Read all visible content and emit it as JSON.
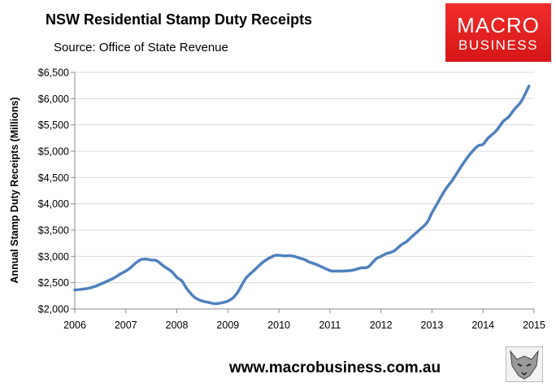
{
  "header": {
    "title": "NSW Residential Stamp Duty Receipts",
    "source": "Source: Office of State Revenue"
  },
  "logo": {
    "line1": "MACRO",
    "line2": "BUSINESS"
  },
  "footer": {
    "url": "www.macrobusiness.com.au"
  },
  "chart_data": {
    "type": "line",
    "title": "NSW Residential Stamp Duty Receipts",
    "subtitle": "Source: Office of State Revenue",
    "xlabel": "",
    "ylabel": "Annual Stamp Duty Receipts (Millions)",
    "xlim": [
      2006,
      2015
    ],
    "ylim": [
      2000,
      6500
    ],
    "x_ticks": [
      "2006",
      "2007",
      "2008",
      "2009",
      "2010",
      "2011",
      "2012",
      "2013",
      "2014",
      "2015"
    ],
    "y_ticks": [
      "$2,000",
      "$2,500",
      "$3,000",
      "$3,500",
      "$4,000",
      "$4,500",
      "$5,000",
      "$5,500",
      "$6,000",
      "$6,500"
    ],
    "grid": "horizontal",
    "line_color": "#4f81bd",
    "series": [
      {
        "x": [
          2006.0,
          2006.25,
          2006.4,
          2006.5,
          2006.75,
          2006.9,
          2007.0,
          2007.1,
          2007.2,
          2007.3,
          2007.4,
          2007.5,
          2007.6,
          2007.75,
          2007.9,
          2008.0,
          2008.1,
          2008.2,
          2008.35,
          2008.5,
          2008.6,
          2008.75,
          2008.9,
          2009.0,
          2009.1,
          2009.2,
          2009.35,
          2009.5,
          2009.7,
          2009.9,
          2010.0,
          2010.1,
          2010.25,
          2010.4,
          2010.5,
          2010.6,
          2010.75,
          2011.0,
          2011.1,
          2011.25,
          2011.4,
          2011.5,
          2011.6,
          2011.75,
          2011.9,
          2012.0,
          2012.1,
          2012.25,
          2012.4,
          2012.5,
          2012.6,
          2012.75,
          2012.9,
          2013.0,
          2013.1,
          2013.25,
          2013.4,
          2013.5,
          2013.6,
          2013.75,
          2013.9,
          2014.0,
          2014.1,
          2014.25,
          2014.4,
          2014.5,
          2014.6,
          2014.75,
          2014.9
        ],
        "y": [
          2360,
          2390,
          2430,
          2470,
          2580,
          2670,
          2720,
          2790,
          2880,
          2940,
          2950,
          2930,
          2920,
          2810,
          2710,
          2600,
          2530,
          2380,
          2220,
          2150,
          2130,
          2100,
          2120,
          2150,
          2210,
          2330,
          2580,
          2720,
          2900,
          3010,
          3020,
          3010,
          3010,
          2970,
          2940,
          2890,
          2840,
          2730,
          2720,
          2720,
          2730,
          2750,
          2780,
          2800,
          2950,
          3000,
          3050,
          3100,
          3220,
          3280,
          3370,
          3500,
          3640,
          3830,
          4000,
          4250,
          4450,
          4600,
          4750,
          4950,
          5100,
          5130,
          5250,
          5380,
          5570,
          5650,
          5780,
          5950,
          6240
        ]
      }
    ]
  }
}
